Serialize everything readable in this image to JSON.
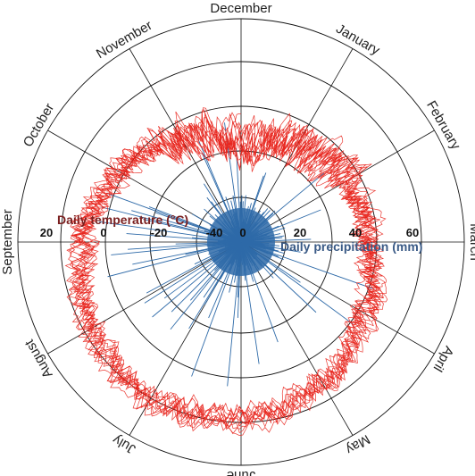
{
  "chart_data": {
    "type": "polar-line",
    "months": [
      "December",
      "January",
      "February",
      "March",
      "April",
      "May",
      "June",
      "July",
      "August",
      "September",
      "October",
      "November"
    ],
    "temperature": {
      "title": "Daily temperature (°C)",
      "ticks": [
        "20",
        "0",
        "-20",
        "-40"
      ],
      "range": [
        -50,
        30
      ],
      "color": "#e8231c",
      "monthly_mean": [
        -16,
        -10,
        -6,
        -3,
        4,
        12,
        18,
        20,
        17,
        11,
        2,
        -8
      ],
      "spread": 9
    },
    "precipitation": {
      "title": "Daily precipitation (mm)",
      "ticks": [
        "0",
        "20",
        "40",
        "60"
      ],
      "range": [
        0,
        75
      ],
      "color": "#2e6aa8",
      "typical_max": 18,
      "peak_max": 62
    }
  }
}
